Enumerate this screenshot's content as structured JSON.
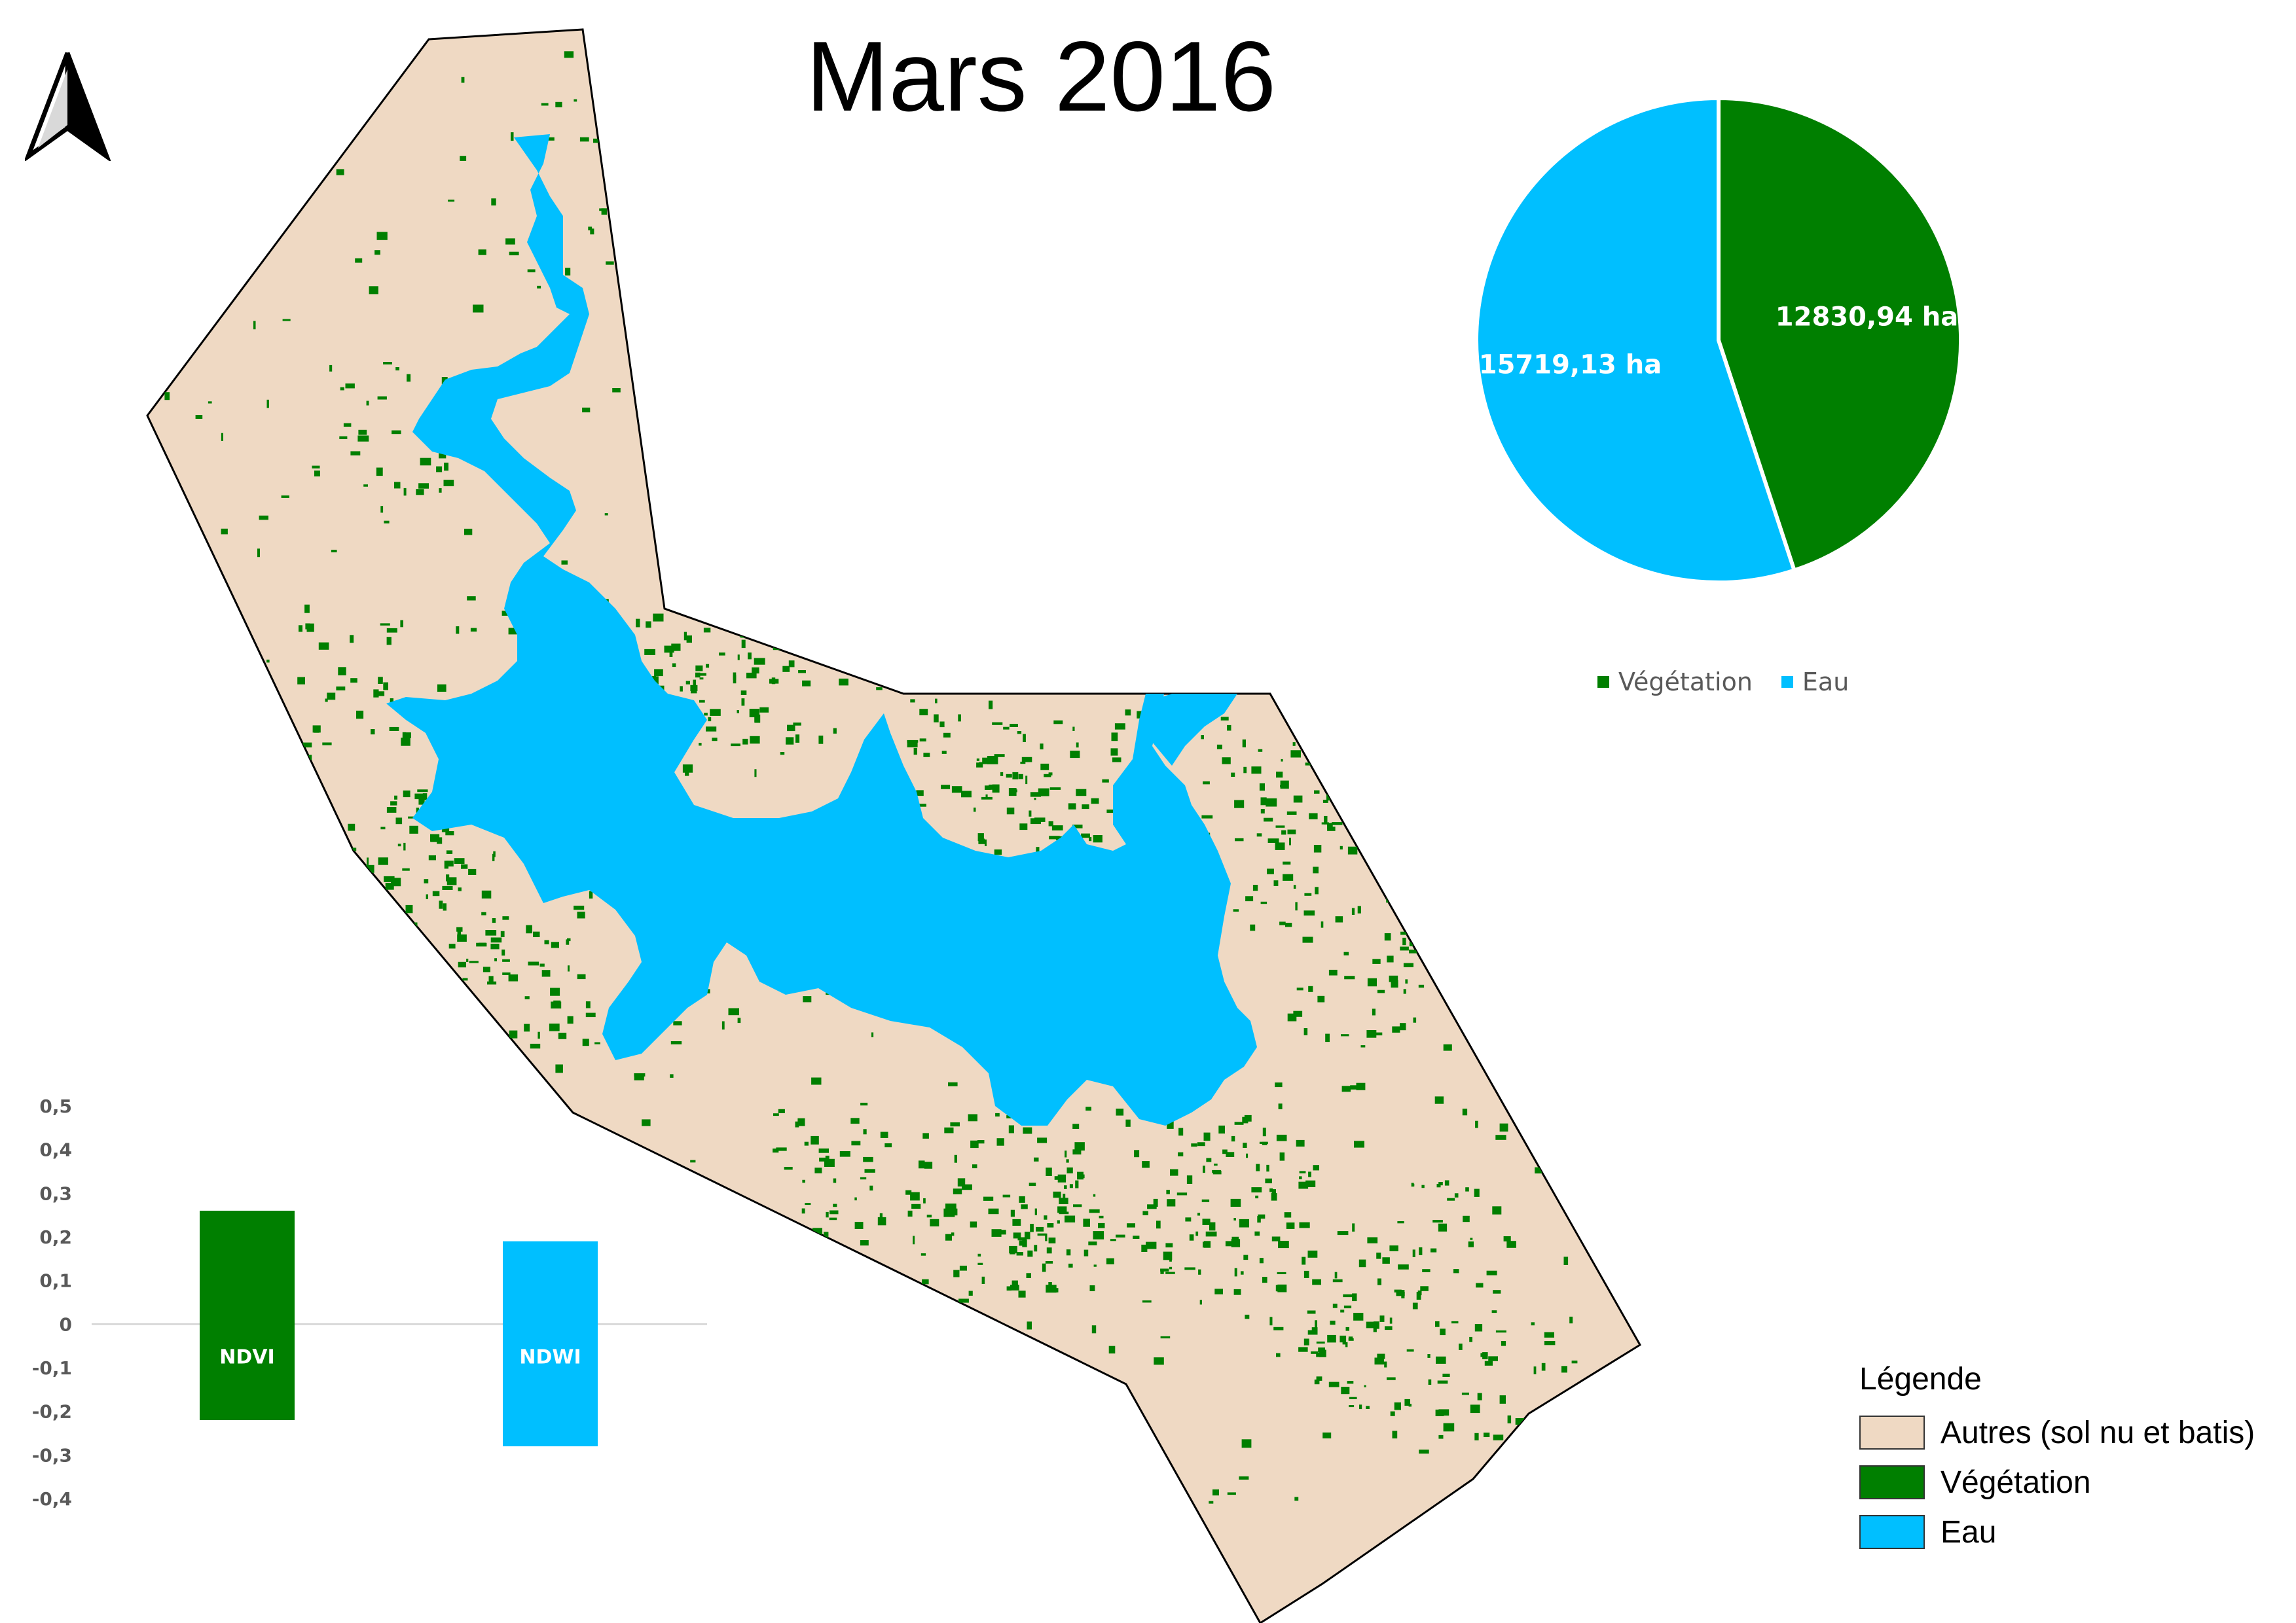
{
  "title": "Mars 2016",
  "colors": {
    "other": "#efd9c3",
    "vegetation": "#007f00",
    "water": "#00bfff"
  },
  "icons": {
    "north": "north-arrow-icon"
  },
  "chart_data": [
    {
      "type": "pie",
      "categories": [
        "Végétation",
        "Eau"
      ],
      "values": [
        12830.94,
        15719.13
      ],
      "data_labels": [
        "12830,94 ha",
        "15719,13 ha"
      ],
      "colors": [
        "#007f00",
        "#00bfff"
      ],
      "legend_position": "bottom",
      "legend": [
        "Végétation",
        "Eau"
      ]
    },
    {
      "type": "bar",
      "categories": [
        "NDVI",
        "NDWI"
      ],
      "series": [
        {
          "values_max": [
            0.26,
            0.19
          ],
          "values_min": [
            -0.22,
            -0.28
          ]
        }
      ],
      "colors": [
        "#007f00",
        "#00bfff"
      ],
      "ylim": [
        -0.4,
        0.5
      ],
      "yticks": [
        "0,5",
        "0,4",
        "0,3",
        "0,2",
        "0,1",
        "0",
        "-0,1",
        "-0,2",
        "-0,3",
        "-0,4"
      ],
      "grid": false
    }
  ],
  "legend": {
    "title": "Légende",
    "items": [
      {
        "label": "Autres (sol nu et batis)",
        "color": "#efd9c3"
      },
      {
        "label": "Végétation",
        "color": "#007f00"
      },
      {
        "label": "Eau",
        "color": "#00bfff"
      }
    ]
  }
}
